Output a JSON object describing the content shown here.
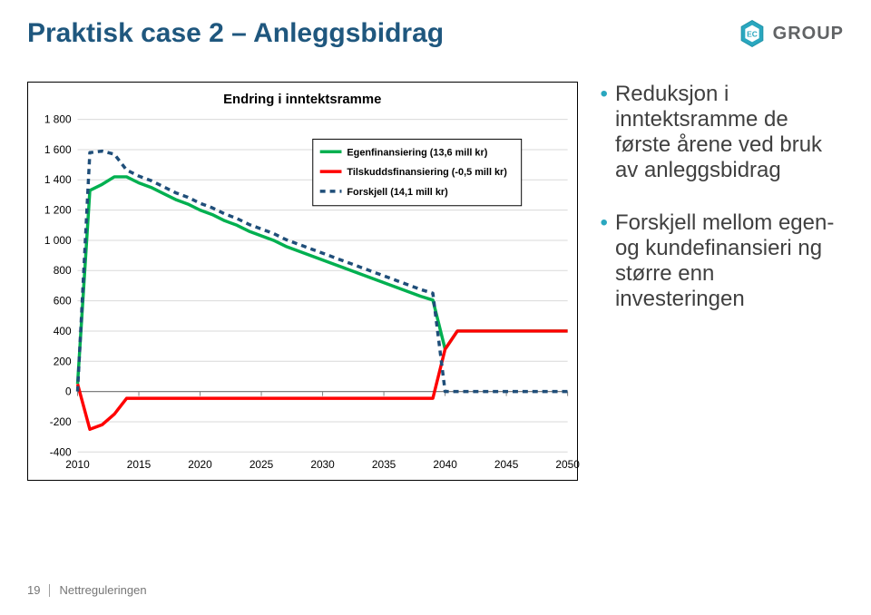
{
  "title": "Praktisk case 2 – Anleggsbidrag",
  "logo_text": "GROUP",
  "logo_color": "#2aa7bf",
  "logo_text_color": "#616365",
  "chart": {
    "title": "Endring i inntektsramme",
    "title_fontsize": 15,
    "x_ticks": [
      2010,
      2015,
      2020,
      2025,
      2030,
      2035,
      2040,
      2045,
      2050
    ],
    "y_ticks": [
      -400,
      -200,
      0,
      200,
      400,
      600,
      800,
      1000,
      1200,
      1400,
      1600,
      1800
    ],
    "ylim": [
      -400,
      1800
    ],
    "xlim": [
      2010,
      2050
    ],
    "y_format_space": true,
    "axis_fontsize": 12,
    "grid_color": "#d9d9d9",
    "axis_color": "#808080",
    "background": "#ffffff",
    "legend": {
      "border_color": "#000000",
      "fontsize": 11,
      "items": [
        {
          "label": "Egenfinansiering (13,6 mill kr)",
          "color": "#00b050",
          "dash": null
        },
        {
          "label": "Tilskuddsfinansiering (-0,5 mill kr)",
          "color": "#ff0000",
          "dash": null
        },
        {
          "label": "Forskjell (14,1 mill kr)",
          "color": "#1f4e79",
          "dash": "6,5"
        }
      ]
    },
    "series": [
      {
        "name": "Egenfinansiering (13,6 mill kr)",
        "color": "#00b050",
        "width": 3.5,
        "dash": null,
        "points": [
          [
            2010,
            50
          ],
          [
            2011,
            1330
          ],
          [
            2012,
            1370
          ],
          [
            2013,
            1420
          ],
          [
            2014,
            1420
          ],
          [
            2015,
            1380
          ],
          [
            2016,
            1350
          ],
          [
            2017,
            1310
          ],
          [
            2018,
            1270
          ],
          [
            2019,
            1240
          ],
          [
            2020,
            1200
          ],
          [
            2021,
            1170
          ],
          [
            2022,
            1130
          ],
          [
            2023,
            1100
          ],
          [
            2024,
            1060
          ],
          [
            2025,
            1030
          ],
          [
            2026,
            1000
          ],
          [
            2027,
            960
          ],
          [
            2028,
            930
          ],
          [
            2029,
            900
          ],
          [
            2030,
            870
          ],
          [
            2031,
            840
          ],
          [
            2032,
            810
          ],
          [
            2033,
            780
          ],
          [
            2034,
            750
          ],
          [
            2035,
            720
          ],
          [
            2036,
            690
          ],
          [
            2037,
            660
          ],
          [
            2038,
            630
          ],
          [
            2039,
            605
          ],
          [
            2040,
            280
          ],
          [
            2041,
            400
          ],
          [
            2042,
            400
          ],
          [
            2043,
            400
          ],
          [
            2044,
            400
          ],
          [
            2045,
            400
          ],
          [
            2046,
            400
          ],
          [
            2047,
            400
          ],
          [
            2048,
            400
          ],
          [
            2049,
            400
          ],
          [
            2050,
            400
          ]
        ]
      },
      {
        "name": "Tilskuddsfinansiering (-0,5 mill kr)",
        "color": "#ff0000",
        "width": 3.5,
        "dash": null,
        "points": [
          [
            2010,
            50
          ],
          [
            2011,
            -250
          ],
          [
            2012,
            -220
          ],
          [
            2013,
            -150
          ],
          [
            2014,
            -45
          ],
          [
            2015,
            -45
          ],
          [
            2016,
            -45
          ],
          [
            2017,
            -45
          ],
          [
            2018,
            -45
          ],
          [
            2019,
            -45
          ],
          [
            2020,
            -45
          ],
          [
            2021,
            -45
          ],
          [
            2022,
            -45
          ],
          [
            2023,
            -45
          ],
          [
            2024,
            -45
          ],
          [
            2025,
            -45
          ],
          [
            2026,
            -45
          ],
          [
            2027,
            -45
          ],
          [
            2028,
            -45
          ],
          [
            2029,
            -45
          ],
          [
            2030,
            -45
          ],
          [
            2031,
            -45
          ],
          [
            2032,
            -45
          ],
          [
            2033,
            -45
          ],
          [
            2034,
            -45
          ],
          [
            2035,
            -45
          ],
          [
            2036,
            -45
          ],
          [
            2037,
            -45
          ],
          [
            2038,
            -45
          ],
          [
            2039,
            -45
          ],
          [
            2040,
            280
          ],
          [
            2041,
            400
          ],
          [
            2042,
            400
          ],
          [
            2043,
            400
          ],
          [
            2044,
            400
          ],
          [
            2045,
            400
          ],
          [
            2046,
            400
          ],
          [
            2047,
            400
          ],
          [
            2048,
            400
          ],
          [
            2049,
            400
          ],
          [
            2050,
            400
          ]
        ]
      },
      {
        "name": "Forskjell (14,1 mill kr)",
        "color": "#1f4e79",
        "width": 3.5,
        "dash": "6,5",
        "points": [
          [
            2010,
            0
          ],
          [
            2011,
            1580
          ],
          [
            2012,
            1590
          ],
          [
            2013,
            1570
          ],
          [
            2014,
            1465
          ],
          [
            2015,
            1425
          ],
          [
            2016,
            1395
          ],
          [
            2017,
            1355
          ],
          [
            2018,
            1315
          ],
          [
            2019,
            1285
          ],
          [
            2020,
            1245
          ],
          [
            2021,
            1215
          ],
          [
            2022,
            1175
          ],
          [
            2023,
            1145
          ],
          [
            2024,
            1105
          ],
          [
            2025,
            1075
          ],
          [
            2026,
            1045
          ],
          [
            2027,
            1005
          ],
          [
            2028,
            975
          ],
          [
            2029,
            945
          ],
          [
            2030,
            915
          ],
          [
            2031,
            885
          ],
          [
            2032,
            855
          ],
          [
            2033,
            825
          ],
          [
            2034,
            795
          ],
          [
            2035,
            765
          ],
          [
            2036,
            735
          ],
          [
            2037,
            705
          ],
          [
            2038,
            675
          ],
          [
            2039,
            650
          ],
          [
            2040,
            0
          ],
          [
            2041,
            0
          ],
          [
            2042,
            0
          ],
          [
            2043,
            0
          ],
          [
            2044,
            0
          ],
          [
            2045,
            0
          ],
          [
            2046,
            0
          ],
          [
            2047,
            0
          ],
          [
            2048,
            0
          ],
          [
            2049,
            0
          ],
          [
            2050,
            0
          ]
        ]
      }
    ]
  },
  "bullets": [
    "Reduksjon i inntektsramme de første årene ved bruk av anleggsbidrag",
    "Forskjell mellom egen- og kundefinansieri ng større enn investeringen"
  ],
  "bullet_color": "#2aa7bf",
  "bullet_text_color": "#404040",
  "footer": {
    "page": "19",
    "label": "Nettreguleringen"
  }
}
